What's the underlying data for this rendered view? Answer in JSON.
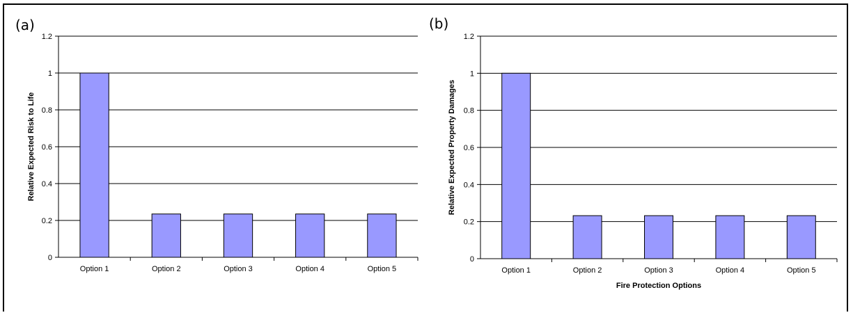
{
  "chart_data": [
    {
      "type": "bar",
      "panel_label": "(a)",
      "categories": [
        "Option 1",
        "Option 2",
        "Option 3",
        "Option 4",
        "Option 5"
      ],
      "values": [
        1.0,
        0.235,
        0.235,
        0.235,
        0.235
      ],
      "title": "",
      "xlabel": "",
      "ylabel": "Relative Expected Risk to Life",
      "ylim": [
        0,
        1.2
      ],
      "yticks": [
        "0",
        "0.2",
        "0.4",
        "0.6",
        "0.8",
        "1",
        "1.2"
      ],
      "grid": true,
      "bar_color": "#9999FF"
    },
    {
      "type": "bar",
      "panel_label": "(b)",
      "categories": [
        "Option 1",
        "Option 2",
        "Option 3",
        "Option 4",
        "Option 5"
      ],
      "values": [
        1.0,
        0.232,
        0.232,
        0.232,
        0.232
      ],
      "title": "",
      "xlabel": "Fire Protection Options",
      "ylabel": "Relative Expected Property Damages",
      "ylim": [
        0,
        1.2
      ],
      "yticks": [
        "0",
        "0.2",
        "0.4",
        "0.6",
        "0.8",
        "1",
        "1.2"
      ],
      "grid": true,
      "bar_color": "#9999FF"
    }
  ]
}
